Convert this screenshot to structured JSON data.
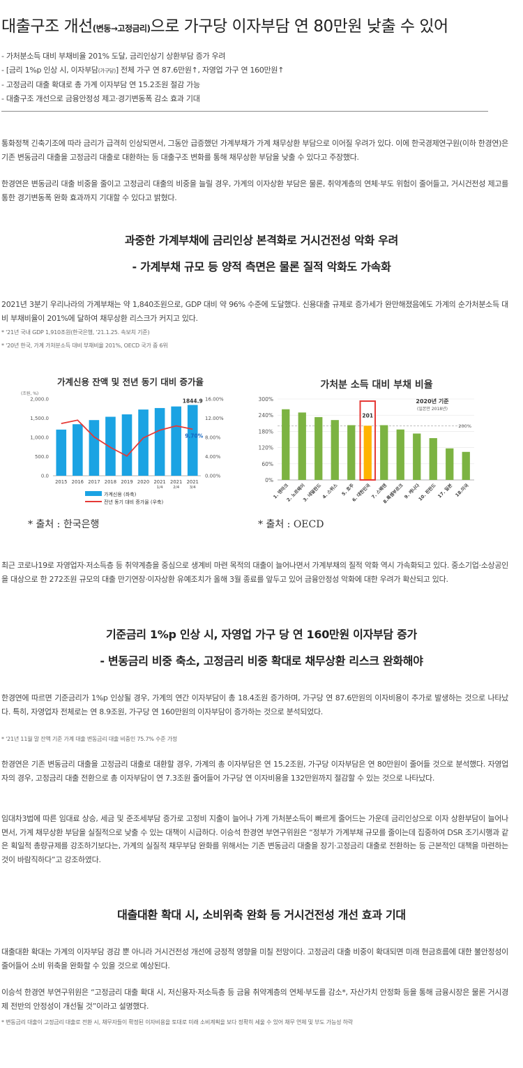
{
  "title": {
    "main": "대출구조 개선",
    "paren": "(변동→고정금리)",
    "rest": "으로 가구당 이자부담 연 80만원 낮출 수 있어"
  },
  "summary": [
    "- 가처분소득 대비 부채비율 201% 도달, 금리인상기 상환부담 증가 우려",
    {
      "pre": "- [금리 1%p 인상 시, 이자부담",
      "small": "(가구당)",
      "post": "] 전체 가구 연 87.6만원↑, 자영업 가구 연 160만원↑"
    },
    "- 고정금리 대출 확대로 총 가계 이자부담 연 15.2조원 절감 가능",
    "- 대출구조 개선으로 금융안정성 제고·경기변동폭 감소 효과 기대"
  ],
  "intro": {
    "p1": "통화정책 긴축기조에 따라 금리가 급격히 인상되면서, 그동안 급증했던 가계부채가 가계 채무상환 부담으로 이어질 우려가 있다. 이에 한국경제연구원(이하 한경연)은 기존 변동금리 대출을 고정금리 대출로 대환하는 등 대출구조 변화를 통해 채무상환 부담을 낮출 수 있다고 주장했다.",
    "p2": "한경연은 변동금리 대출 비중을 줄이고 고정금리 대출의 비중을 늘릴 경우, 가계의 이자상환 부담은 물론, 취약계층의 연체·부도 위험이 줄어들고, 거시건전성 제고를 통한 경기변동폭 완화 효과까지 기대할 수 있다고 밝혔다."
  },
  "section1": {
    "head1": "과중한 가계부채에 금리인상 본격화로 거시건전성 악화 우려",
    "head2": "- 가계부채 규모 등 양적 측면은 물론 질적 악화도 가속화",
    "p1": "2021년 3분기 우리나라의 가계부채는 약 1,840조원으로, GDP 대비 약 96% 수준에 도달했다. 신용대출 규제로 증가세가 완만해졌음에도 가계의 순가처분소득 대비 부채비율이 201%에 달하여 채무상환 리스크가 커지고 있다.",
    "note1": "* '21년 국내 GDP 1,910조원(한국은행, '21.1.25. 속보치 기준)",
    "note2": "* '20년 한국, 가계 가처분소득 대비 부채비율 201%, OECD 국가 중 6위",
    "p2": "최근 코로나19로 자영업자·저소득층 등 취약계층을 중심으로 생계비 마련 목적의 대출이 늘어나면서 가계부채의 질적 악화 역시 가속화되고 있다. 중소기업·소상공인을 대상으로 한 272조원 규모의 대출 만기연장·이자상환 유예조치가 올해 3월 종료를 앞두고 있어 금융안정성 악화에 대한 우려가 확산되고 있다."
  },
  "section2": {
    "head1": "기준금리 1%p 인상 시, 자영업 가구 당 연 160만원 이자부담 증가",
    "head2": "- 변동금리 비중 축소, 고정금리 비중 확대로 채무상환 리스크 완화해야",
    "p1": "한경연에 따르면 기준금리가 1%p 인상될 경우, 가계의 연간 이자부담이 총 18.4조원 증가하며, 가구당 연 87.6만원의 이자비용이 추가로 발생하는 것으로 나타났다. 특히, 자영업자 전체로는 연 8.9조원, 가구당 연 160만원의 이자부담이 증가하는 것으로 분석되었다.",
    "note1": "* '21년 11월 말 잔액 기준 가계 대출 변동금리 대출 비중인 75.7% 수준 가정",
    "p2": "한경연은 기존 변동금리 대출을 고정금리 대출로 대환할 경우, 가계의 총 이자부담은 연 15.2조원, 가구당 이자부담은 연 80만원이 줄어들 것으로 분석했다. 자영업자의 경우, 고정금리 대출 전환으로 총 이자부담이 연 7.3조원 줄어들어 가구당 연 이자비용을 132만원까지 절감할 수 있는 것으로 나타났다.",
    "p3": "임대차3법에 따른 임대료 상승, 세금 및 준조세부담 증가로 고정비 지출이 늘어나 가계 가처분소득이 빠르게 줄어드는 가운데 금리인상으로 이자 상환부담이 늘어나면서, 가계 채무상환 부담을 실질적으로 낮출 수 있는 대책이 시급하다. 이승석 한경연 부연구위원은 “정부가 가계부채 규모를 줄이는데 집중하여 DSR 조기시행과 같은 획일적 총량규제를 강조하기보다는, 가계의 실질적 채무부담 완화를 위해서는 기존 변동금리 대출을 장기·고정금리 대출로 전환하는 등 근본적인 대책을 마련하는 것이 바람직하다”고 강조하였다."
  },
  "section3": {
    "head1": "대출대환 확대 시, 소비위축 완화 등 거시건전성 개선 효과 기대",
    "p1": "대출대환 확대는 가계의 이자부담 경감 뿐 아니라 거시건전성 개선에 긍정적 영향을 미칠 전망이다. 고정금리 대출 비중이 확대되면 미래 현금흐름에 대한 불안정성이 줄어들어 소비 위축을 완화할 수 있을 것으로 예상된다.",
    "p2": "이승석 한경연 부연구위원은 “고정금리 대출 확대 시, 저신용자·저소득층 등 금융 취약계층의 연체·부도를 감소*, 자산가치 안정화 등을 통해 금융시장은 물론 거시경제 전반의 안정성이 개선될 것”이라고 설명했다.",
    "note1": "* 변동금리 대출이 고정금리 대출로 전환 시, 채무자들이 확정된 이자비용을 토대로 미래 소비계획을 보다 정확히 세울 수 있어 채무 연체 및 부도 가능성 하락"
  },
  "chart_data": [
    {
      "type": "bar",
      "title": "가계신용 잔액 및 전년 동기 대비 증가율",
      "ylabel": "(조원, %)",
      "categories": [
        "2015",
        "2016",
        "2017",
        "2018",
        "2019",
        "2020",
        "2021\n1/4",
        "2021\n2/4",
        "2021\n3/4"
      ],
      "series": [
        {
          "name": "가계신용 (좌축)",
          "type": "bar",
          "values": [
            1203,
            1343,
            1451,
            1537,
            1600,
            1726,
            1765,
            1806,
            1844.9
          ],
          "color": "#1ba3e3"
        },
        {
          "name": "전년 동기 대비 증가율 (우축)",
          "type": "line",
          "values": [
            10.9,
            11.6,
            8.1,
            5.9,
            4.1,
            7.9,
            9.5,
            10.4,
            9.7
          ],
          "color": "#e53935"
        }
      ],
      "ylim_left": [
        0,
        2000
      ],
      "ylim_right": [
        0,
        16
      ],
      "yticks_left": [
        "0.0",
        "500.0",
        "1,000.0",
        "1,500.0",
        "2,000.0"
      ],
      "yticks_right": [
        "0.00%",
        "4.00%",
        "8.00%",
        "12.00%",
        "16.00%"
      ],
      "labels": {
        "last_bar": "1844.9",
        "last_rate": "9.70%"
      },
      "source": "*  출처 : 한국은행"
    },
    {
      "type": "bar",
      "title": "가처분 소득 대비 부채 비율",
      "categories": [
        "1. 덴마크",
        "2. 노르웨이",
        "3. 네덜란드",
        "4. 스위스",
        "5. 호주",
        "6. 대한민국",
        "7. 스웨덴",
        "8.룩셈부르크",
        "9. 캐나다",
        "10. 핀란드",
        "17. 일본",
        "18.미국"
      ],
      "values": [
        262,
        250,
        233,
        222,
        203,
        201,
        203,
        187,
        172,
        155,
        117,
        104
      ],
      "highlight": "6. 대한민국",
      "highlight_label": "201",
      "ylim": [
        0,
        300
      ],
      "yticks": [
        "0%",
        "60%",
        "120%",
        "180%",
        "240%",
        "300%"
      ],
      "reference": {
        "label": "200%",
        "value": 200
      },
      "note": "2020년 기준",
      "note_sub": "(일본만 2018년)",
      "colors": {
        "bar": "#7cb342",
        "highlight": "#ffb300",
        "box": "#e53935"
      },
      "source": "*  출처 : OECD"
    }
  ]
}
